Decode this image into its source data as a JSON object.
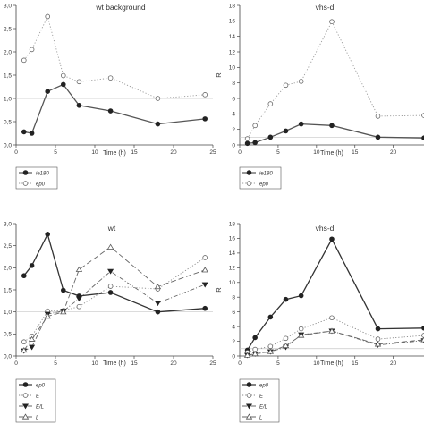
{
  "chart_data": [
    {
      "type": "line",
      "title": "wt background",
      "xlabel": "Time (h)",
      "ylabel": "",
      "xlim": [
        0,
        25
      ],
      "ylim": [
        0,
        3.0
      ],
      "xticks": [
        "0",
        "5",
        "10",
        "15",
        "20",
        "25"
      ],
      "yticks": [
        "0,0",
        "0,5",
        "1,0",
        "1,5",
        "2,0",
        "2,5",
        "3,0"
      ],
      "reference_line": 1.0,
      "legend_position": "below",
      "series": [
        {
          "name": "ie180",
          "marker": "filled-circle",
          "line": "solid",
          "color": "#555555",
          "x": [
            1,
            2,
            4,
            6,
            8,
            12,
            18,
            24
          ],
          "y": [
            0.28,
            0.25,
            1.15,
            1.3,
            0.85,
            0.73,
            0.45,
            0.56
          ]
        },
        {
          "name": "ep0",
          "marker": "open-circle",
          "line": "dotted",
          "color": "#999999",
          "x": [
            1,
            2,
            4,
            6,
            8,
            12,
            18,
            24
          ],
          "y": [
            1.82,
            2.05,
            2.76,
            1.49,
            1.36,
            1.44,
            1.0,
            1.08
          ]
        }
      ]
    },
    {
      "type": "line",
      "title": "vhs-d",
      "xlabel": "Time (h)",
      "ylabel": "R",
      "xlim": [
        0,
        24
      ],
      "ylim": [
        0,
        18
      ],
      "xticks": [
        "0",
        "5",
        "10",
        "15",
        "20"
      ],
      "yticks": [
        "0",
        "2",
        "4",
        "6",
        "8",
        "10",
        "12",
        "14",
        "16",
        "18"
      ],
      "reference_line": 1.0,
      "legend_position": "below",
      "series": [
        {
          "name": "ie180",
          "marker": "filled-circle",
          "line": "solid",
          "color": "#555555",
          "x": [
            1,
            2,
            4,
            6,
            8,
            12,
            18,
            24
          ],
          "y": [
            0.2,
            0.3,
            1.0,
            1.8,
            2.7,
            2.5,
            1.0,
            0.9
          ]
        },
        {
          "name": "ep0",
          "marker": "open-circle",
          "line": "dotted",
          "color": "#999999",
          "x": [
            1,
            2,
            4,
            6,
            8,
            12,
            18,
            24
          ],
          "y": [
            0.8,
            2.5,
            5.3,
            7.7,
            8.2,
            15.9,
            3.7,
            3.8
          ]
        }
      ]
    },
    {
      "type": "line",
      "title": "wt",
      "xlabel": "Time (h)",
      "ylabel": "",
      "xlim": [
        0,
        25
      ],
      "ylim": [
        0,
        3.0
      ],
      "xticks": [
        "0",
        "5",
        "10",
        "15",
        "20",
        "25"
      ],
      "yticks": [
        "0,0",
        "0,5",
        "1,0",
        "1,5",
        "2,0",
        "2,5",
        "3,0"
      ],
      "reference_line": 1.0,
      "legend_position": "below",
      "series": [
        {
          "name": "ep0",
          "marker": "filled-circle",
          "line": "solid",
          "color": "#333333",
          "x": [
            1,
            2,
            4,
            6,
            8,
            12,
            18,
            24
          ],
          "y": [
            1.82,
            2.05,
            2.76,
            1.49,
            1.36,
            1.44,
            1.0,
            1.08
          ]
        },
        {
          "name": "E",
          "marker": "open-circle",
          "line": "dotted",
          "color": "#888888",
          "x": [
            1,
            2,
            4,
            6,
            8,
            12,
            18,
            24
          ],
          "y": [
            0.32,
            0.45,
            1.02,
            1.03,
            1.12,
            1.58,
            1.52,
            2.23
          ]
        },
        {
          "name": "E/L",
          "marker": "filled-triangle-down",
          "line": "dashdot",
          "color": "#666666",
          "x": [
            1,
            2,
            4,
            6,
            8,
            12,
            18,
            24
          ],
          "y": [
            0.12,
            0.2,
            0.95,
            1.02,
            1.3,
            1.92,
            1.2,
            1.62
          ]
        },
        {
          "name": "L",
          "marker": "open-triangle-up",
          "line": "longdash",
          "color": "#666666",
          "x": [
            1,
            2,
            4,
            6,
            8,
            12,
            18,
            24
          ],
          "y": [
            0.13,
            0.38,
            0.9,
            1.0,
            1.96,
            2.47,
            1.57,
            1.95
          ]
        }
      ]
    },
    {
      "type": "line",
      "title": "vhs-d",
      "xlabel": "Time (h)",
      "ylabel": "R",
      "xlim": [
        0,
        24
      ],
      "ylim": [
        0,
        18
      ],
      "xticks": [
        "0",
        "5",
        "10",
        "15",
        "20"
      ],
      "yticks": [
        "0",
        "2",
        "4",
        "6",
        "8",
        "10",
        "12",
        "14",
        "16",
        "18"
      ],
      "reference_line": 1.0,
      "legend_position": "below",
      "series": [
        {
          "name": "ep0",
          "marker": "filled-circle",
          "line": "solid",
          "color": "#333333",
          "x": [
            1,
            2,
            4,
            6,
            8,
            12,
            18,
            24
          ],
          "y": [
            0.8,
            2.5,
            5.3,
            7.7,
            8.2,
            15.9,
            3.7,
            3.8
          ]
        },
        {
          "name": "E",
          "marker": "open-circle",
          "line": "dotted",
          "color": "#888888",
          "x": [
            1,
            2,
            4,
            6,
            8,
            12,
            18,
            24
          ],
          "y": [
            0.5,
            0.9,
            1.3,
            2.4,
            3.7,
            5.2,
            2.3,
            2.8
          ]
        },
        {
          "name": "E/L",
          "marker": "filled-triangle-down",
          "line": "dashdot",
          "color": "#666666",
          "x": [
            1,
            2,
            4,
            6,
            8,
            12,
            18,
            24
          ],
          "y": [
            0.1,
            0.3,
            0.6,
            1.2,
            2.9,
            3.4,
            1.5,
            2.1
          ]
        },
        {
          "name": "L",
          "marker": "open-triangle-up",
          "line": "longdash",
          "color": "#666666",
          "x": [
            1,
            2,
            4,
            6,
            8,
            12,
            18,
            24
          ],
          "y": [
            0.1,
            0.3,
            0.6,
            1.4,
            2.8,
            3.4,
            1.6,
            2.2
          ]
        }
      ]
    }
  ]
}
